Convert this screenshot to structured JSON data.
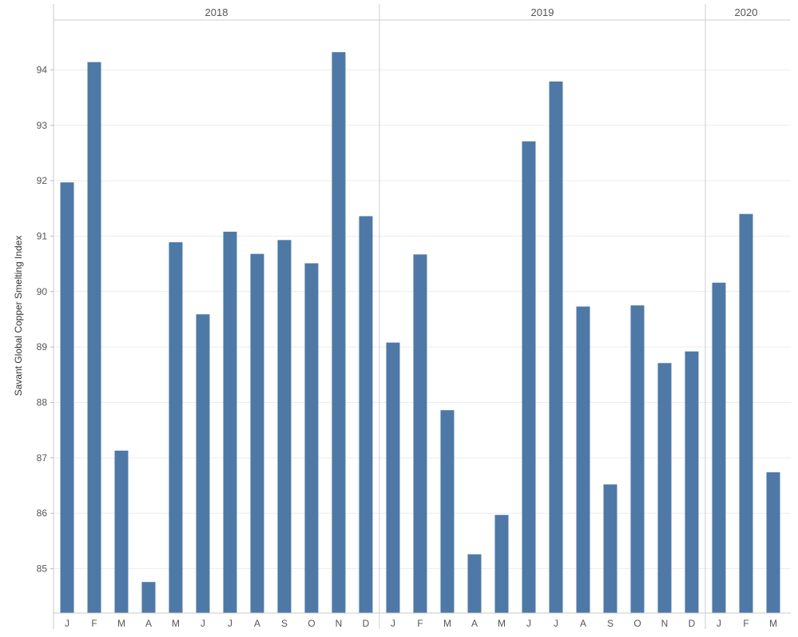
{
  "chart_data": {
    "type": "bar",
    "ylabel": "Savant Global Copper Smelting Index",
    "ylim": [
      84.2,
      94.9
    ],
    "yticks": [
      85,
      86,
      87,
      88,
      89,
      90,
      91,
      92,
      93,
      94
    ],
    "grid": true,
    "bar_color": "#4e79a7",
    "groups": [
      {
        "year": "2018",
        "months": [
          "J",
          "F",
          "M",
          "A",
          "M",
          "J",
          "J",
          "A",
          "S",
          "O",
          "N",
          "D"
        ],
        "values": [
          91.97,
          94.14,
          87.13,
          84.76,
          90.89,
          89.59,
          91.08,
          90.68,
          90.93,
          90.51,
          94.32,
          91.36
        ]
      },
      {
        "year": "2019",
        "months": [
          "J",
          "F",
          "M",
          "A",
          "M",
          "J",
          "J",
          "A",
          "S",
          "O",
          "N",
          "D"
        ],
        "values": [
          89.08,
          90.67,
          87.86,
          85.26,
          85.97,
          92.71,
          93.79,
          89.73,
          86.52,
          89.75,
          88.71,
          88.92
        ]
      },
      {
        "year": "2020",
        "months": [
          "J",
          "F",
          "M"
        ],
        "values": [
          90.16,
          91.4,
          86.74
        ]
      }
    ]
  }
}
